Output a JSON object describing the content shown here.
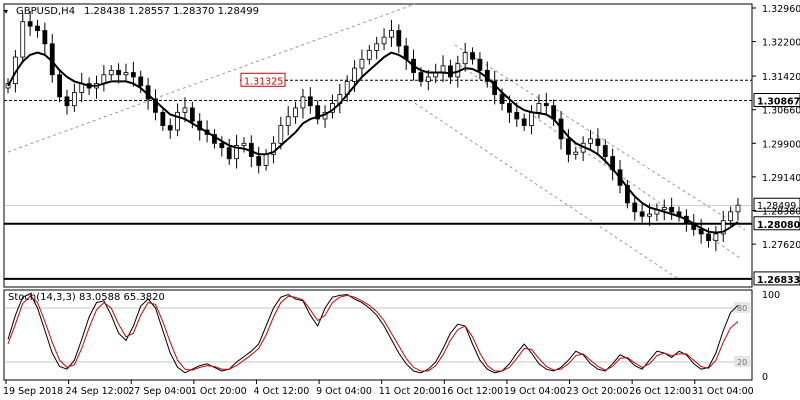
{
  "header": {
    "symbol_timeframe": "GBPUSD,H4",
    "ohlc": "1.28438 1.28557 1.28370 1.28499"
  },
  "colors": {
    "candle": "#000000",
    "ma": "#000000",
    "stoch_main": "#000000",
    "stoch_signal": "#d40000",
    "grid": "#c8c8c8",
    "annotation_red": "#d40000",
    "channel": "#9a9a9a"
  },
  "chart_data": [
    {
      "type": "candlestick",
      "title": "GBPUSD,H4",
      "ylim": [
        1.2665,
        1.3305
      ],
      "price_ticks": [
        "1.32960",
        "1.32200",
        "1.31420",
        "1.30660",
        "1.29900",
        "1.29140",
        "1.28380",
        "1.27620"
      ],
      "x_tick_labels": [
        "19 Sep 2018",
        "24 Sep 12:00",
        "27 Sep 04:00",
        "1 Oct 20:00",
        "4 Oct 12:00",
        "9 Oct 04:00",
        "11 Oct 20:00",
        "16 Oct 12:00",
        "19 Oct 04:00",
        "23 Oct 20:00",
        "26 Oct 12:00",
        "31 Oct 04:00"
      ],
      "close_path": [
        1.3125,
        1.3185,
        1.3265,
        1.3255,
        1.3245,
        1.3215,
        1.3145,
        1.3095,
        1.3075,
        1.3105,
        1.3125,
        1.3115,
        1.3125,
        1.3145,
        1.3155,
        1.3145,
        1.315,
        1.314,
        1.312,
        1.309,
        1.306,
        1.303,
        1.302,
        1.306,
        1.307,
        1.304,
        1.302,
        1.301,
        1.299,
        1.298,
        1.2955,
        1.2985,
        1.299,
        1.296,
        1.294,
        1.2965,
        1.299,
        1.303,
        1.305,
        1.307,
        1.3095,
        1.3075,
        1.3045,
        1.306,
        1.308,
        1.31,
        1.313,
        1.316,
        1.318,
        1.32,
        1.3215,
        1.323,
        1.3245,
        1.321,
        1.318,
        1.315,
        1.313,
        1.314,
        1.315,
        1.3165,
        1.314,
        1.317,
        1.3195,
        1.318,
        1.3155,
        1.313,
        1.31,
        1.308,
        1.306,
        1.3045,
        1.303,
        1.306,
        1.308,
        1.3075,
        1.3045,
        1.3,
        1.2965,
        1.297,
        1.299,
        1.3,
        1.2985,
        1.296,
        1.293,
        1.2895,
        1.2855,
        1.2835,
        1.2825,
        1.283,
        1.284,
        1.2845,
        1.2835,
        1.2825,
        1.281,
        1.2795,
        1.2785,
        1.277,
        1.2785,
        1.2815,
        1.2835,
        1.285
      ],
      "moving_average": [
        1.312,
        1.315,
        1.3175,
        1.319,
        1.3195,
        1.319,
        1.3175,
        1.3155,
        1.314,
        1.313,
        1.3125,
        1.312,
        1.312,
        1.3125,
        1.313,
        1.313,
        1.313,
        1.3125,
        1.3115,
        1.31,
        1.3085,
        1.307,
        1.3055,
        1.305,
        1.3045,
        1.3035,
        1.3025,
        1.3015,
        1.3005,
        1.2995,
        1.2985,
        1.298,
        1.2978,
        1.2972,
        1.2965,
        1.2965,
        1.297,
        1.2985,
        1.3,
        1.3015,
        1.3035,
        1.3045,
        1.305,
        1.3055,
        1.3065,
        1.308,
        1.31,
        1.312,
        1.314,
        1.3155,
        1.317,
        1.3185,
        1.3195,
        1.319,
        1.318,
        1.3165,
        1.3155,
        1.315,
        1.315,
        1.315,
        1.3148,
        1.3152,
        1.316,
        1.3158,
        1.315,
        1.3138,
        1.3122,
        1.3105,
        1.309,
        1.3075,
        1.3065,
        1.306,
        1.3058,
        1.3055,
        1.3045,
        1.3025,
        1.3005,
        1.299,
        1.2982,
        1.2975,
        1.2965,
        1.295,
        1.2932,
        1.2912,
        1.289,
        1.287,
        1.2855,
        1.2845,
        1.284,
        1.2835,
        1.283,
        1.2825,
        1.2818,
        1.2808,
        1.2798,
        1.279,
        1.2788,
        1.279,
        1.28,
        1.2812
      ],
      "horizontal_levels": [
        {
          "price": 1.31325,
          "label": "1.31325",
          "style": "dashed"
        },
        {
          "price": 1.30867,
          "label": "1.30867",
          "style": "dashed"
        },
        {
          "price": 1.2808,
          "label": "1.28080",
          "style": "solid"
        },
        {
          "price": 1.26833,
          "label": "1.26833",
          "style": "solid"
        }
      ],
      "current_price": {
        "price": 1.28499,
        "label": "1.28499"
      }
    },
    {
      "type": "line",
      "title": "Stoch(14,3,3) 83.0588 65.3820",
      "ylim": [
        0,
        100
      ],
      "levels": [
        {
          "value": 80,
          "label": "80"
        },
        {
          "value": 20,
          "label": "20"
        }
      ],
      "scale_labels": {
        "top": "100",
        "bottom": "0"
      },
      "series": [
        {
          "name": "main",
          "value": "83.0588",
          "values": [
            45,
            72,
            92,
            96,
            80,
            55,
            30,
            15,
            12,
            22,
            45,
            70,
            86,
            88,
            72,
            52,
            44,
            60,
            82,
            90,
            80,
            55,
            30,
            14,
            8,
            12,
            16,
            18,
            14,
            10,
            12,
            20,
            26,
            32,
            40,
            60,
            80,
            92,
            95,
            90,
            88,
            72,
            60,
            80,
            92,
            94,
            95,
            90,
            86,
            80,
            72,
            60,
            45,
            30,
            18,
            10,
            8,
            12,
            20,
            35,
            52,
            62,
            60,
            40,
            22,
            12,
            8,
            10,
            18,
            30,
            40,
            30,
            18,
            12,
            10,
            14,
            22,
            32,
            28,
            18,
            12,
            10,
            18,
            28,
            24,
            16,
            12,
            22,
            32,
            30,
            25,
            32,
            28,
            18,
            12,
            14,
            30,
            55,
            75,
            83
          ]
        },
        {
          "name": "signal",
          "value": "65.3820",
          "values": [
            40,
            62,
            85,
            93,
            86,
            65,
            42,
            22,
            14,
            17,
            35,
            58,
            78,
            86,
            80,
            62,
            48,
            52,
            72,
            86,
            84,
            65,
            42,
            22,
            12,
            11,
            14,
            16,
            15,
            12,
            12,
            16,
            22,
            28,
            35,
            50,
            70,
            86,
            93,
            92,
            89,
            78,
            66,
            72,
            86,
            92,
            94,
            92,
            88,
            83,
            76,
            66,
            52,
            38,
            24,
            14,
            10,
            10,
            16,
            28,
            44,
            56,
            60,
            48,
            30,
            16,
            10,
            10,
            14,
            24,
            35,
            34,
            24,
            15,
            11,
            12,
            18,
            27,
            29,
            22,
            15,
            11,
            15,
            24,
            25,
            19,
            14,
            18,
            27,
            30,
            27,
            29,
            29,
            22,
            15,
            13,
            22,
            42,
            58,
            65
          ]
        }
      ]
    }
  ]
}
